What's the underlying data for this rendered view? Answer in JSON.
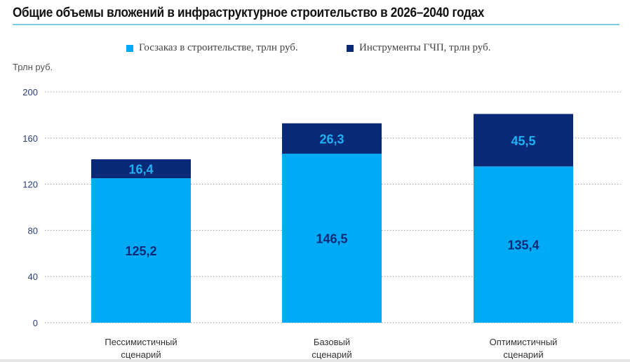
{
  "chart_data": {
    "type": "bar",
    "stacked": true,
    "title": "Общие объемы вложений в инфраструктурное строительство в 2026–2040 годах",
    "ylabel": "Трлн руб.",
    "xlabel": "",
    "ylim": [
      0,
      200
    ],
    "yticks": [
      "0",
      "40",
      "80",
      "120",
      "160",
      "200"
    ],
    "grid": true,
    "legend_position": "top",
    "categories": [
      [
        "Пессимистичный",
        "сценарий"
      ],
      [
        "Базовый",
        "сценарий"
      ],
      [
        "Оптимистичный",
        "сценарий"
      ]
    ],
    "series": [
      {
        "name": "Госзаказ в строительстве, трлн руб.",
        "values": [
          125.2,
          146.5,
          135.4
        ],
        "labels": [
          "125,2",
          "146,5",
          "135,4"
        ],
        "color": "#00aaf5",
        "label_color": "#0a2a78"
      },
      {
        "name": "Инструменты ГЧП, трлн руб.",
        "values": [
          16.4,
          26.3,
          45.5
        ],
        "labels": [
          "16,4",
          "26,3",
          "45,5"
        ],
        "color": "#0a2a78",
        "label_color": "#1eb1f5"
      }
    ]
  }
}
